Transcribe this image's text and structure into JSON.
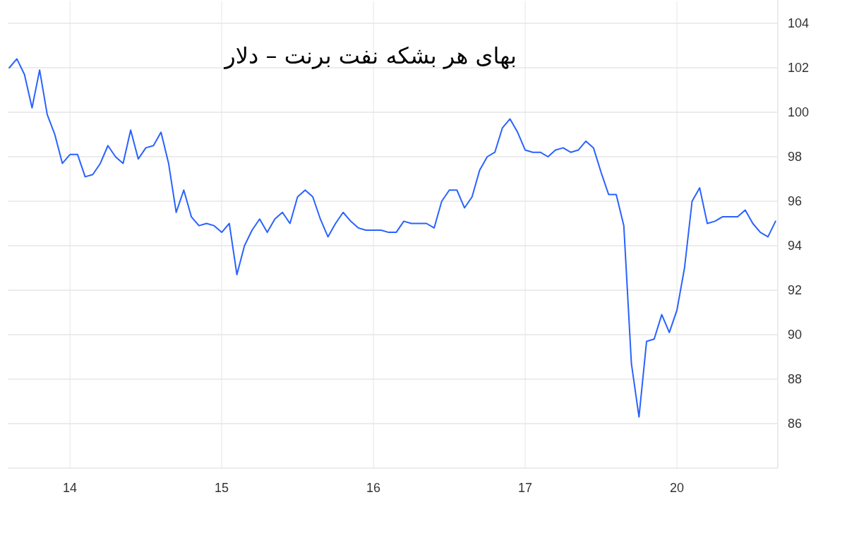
{
  "chart_data": {
    "type": "line",
    "title": "بهای هر بشکه نفت برنت – دلار",
    "categories": [
      null,
      null,
      null,
      null,
      null,
      null,
      null,
      null,
      "14",
      null,
      null,
      null,
      null,
      null,
      null,
      null,
      null,
      null,
      null,
      null,
      null,
      null,
      null,
      null,
      null,
      null,
      null,
      null,
      "15",
      null,
      null,
      null,
      null,
      null,
      null,
      null,
      null,
      null,
      null,
      null,
      null,
      null,
      null,
      null,
      null,
      null,
      null,
      null,
      "16",
      null,
      null,
      null,
      null,
      null,
      null,
      null,
      null,
      null,
      null,
      null,
      null,
      null,
      null,
      null,
      null,
      null,
      null,
      null,
      "17",
      null,
      null,
      null,
      null,
      null,
      null,
      null,
      null,
      null,
      null,
      null,
      null,
      null,
      null,
      null,
      null,
      null,
      null,
      null,
      "20",
      null,
      null,
      null,
      null,
      null,
      null,
      null,
      null,
      null,
      null,
      null,
      null,
      null
    ],
    "values": [
      102.0,
      102.4,
      101.7,
      100.2,
      101.9,
      99.9,
      99.0,
      97.7,
      98.1,
      98.1,
      97.1,
      97.2,
      97.7,
      98.5,
      98.0,
      97.7,
      99.2,
      97.9,
      98.4,
      98.5,
      99.1,
      97.7,
      95.5,
      96.5,
      95.3,
      94.9,
      95.0,
      94.9,
      94.6,
      95.0,
      92.7,
      94.0,
      94.7,
      95.2,
      94.6,
      95.2,
      95.5,
      95.0,
      96.2,
      96.5,
      96.2,
      95.2,
      94.4,
      95.0,
      95.5,
      95.1,
      94.8,
      94.7,
      94.7,
      94.7,
      94.6,
      94.6,
      95.1,
      95.0,
      95.0,
      95.0,
      94.8,
      96.0,
      96.5,
      96.5,
      95.7,
      96.2,
      97.4,
      98.0,
      98.2,
      99.3,
      99.7,
      99.1,
      98.3,
      98.2,
      98.2,
      98.0,
      98.3,
      98.4,
      98.2,
      98.3,
      98.7,
      98.4,
      97.3,
      96.3,
      96.3,
      94.9,
      88.7,
      86.3,
      89.7,
      89.8,
      90.9,
      90.1,
      91.1,
      93.0,
      96.0,
      96.6,
      95.0,
      95.1,
      95.3,
      95.3,
      95.3,
      95.6,
      95.0,
      94.6,
      94.4,
      95.1
    ],
    "color": "#2962ff",
    "ylim": [
      84,
      105
    ],
    "yticks": [
      86,
      88,
      90,
      92,
      94,
      96,
      98,
      100,
      102,
      104
    ],
    "grid": true
  }
}
